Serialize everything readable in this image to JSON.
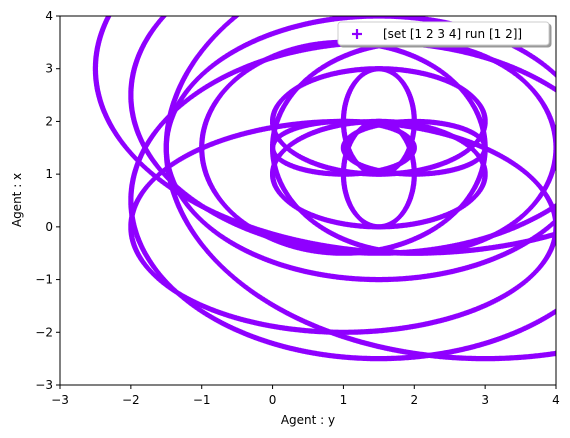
{
  "chart_data": {
    "type": "scatter",
    "title": "",
    "xlabel": "Agent : y",
    "ylabel": "Agent : x",
    "xlim": [
      -3,
      4
    ],
    "ylim": [
      -3,
      4
    ],
    "xticks": [
      -3,
      -2,
      -1,
      0,
      1,
      2,
      3,
      4
    ],
    "yticks": [
      -3,
      -2,
      -1,
      0,
      1,
      2,
      3,
      4
    ],
    "x_tick_labels": [
      "−3",
      "−2",
      "−1",
      "0",
      "1",
      "2",
      "3",
      "4"
    ],
    "y_tick_labels": [
      "−3",
      "−2",
      "−1",
      "0",
      "1",
      "2",
      "3",
      "4"
    ],
    "grid": false,
    "legend_position": "top-right",
    "marker": "+",
    "color": "#8f00ff",
    "series": [
      {
        "name": "[set [1 2 3 4] run [1 2]]",
        "ellipses": [
          {
            "cx": 1.5,
            "cy": 2.0,
            "rx": 0.5,
            "ry": 1.0
          },
          {
            "cx": 1.5,
            "cy": 1.0,
            "rx": 0.5,
            "ry": 1.0
          },
          {
            "cx": 1.0,
            "cy": 1.5,
            "rx": 1.0,
            "ry": 0.5
          },
          {
            "cx": 2.0,
            "cy": 1.5,
            "rx": 1.0,
            "ry": 0.5
          },
          {
            "cx": 1.5,
            "cy": 2.0,
            "rx": 1.5,
            "ry": 1.0
          },
          {
            "cx": 1.5,
            "cy": 1.0,
            "rx": 1.5,
            "ry": 1.0
          },
          {
            "cx": 1.0,
            "cy": 1.5,
            "rx": 2.0,
            "ry": 2.0
          },
          {
            "cx": 2.0,
            "cy": 1.5,
            "rx": 2.0,
            "ry": 2.0
          },
          {
            "cx": 1.5,
            "cy": 1.5,
            "rx": 3.0,
            "ry": 2.5
          },
          {
            "cx": 1.5,
            "cy": 0.5,
            "rx": 3.5,
            "ry": 3.0
          },
          {
            "cx": 1.5,
            "cy": 2.5,
            "rx": 3.5,
            "ry": 3.0
          },
          {
            "cx": 1.0,
            "cy": 0.0,
            "rx": 3.0,
            "ry": 2.0
          },
          {
            "cx": 2.0,
            "cy": 3.0,
            "rx": 4.5,
            "ry": 3.5
          },
          {
            "cx": 3.0,
            "cy": 1.5,
            "rx": 4.5,
            "ry": 4.0
          }
        ]
      }
    ]
  }
}
